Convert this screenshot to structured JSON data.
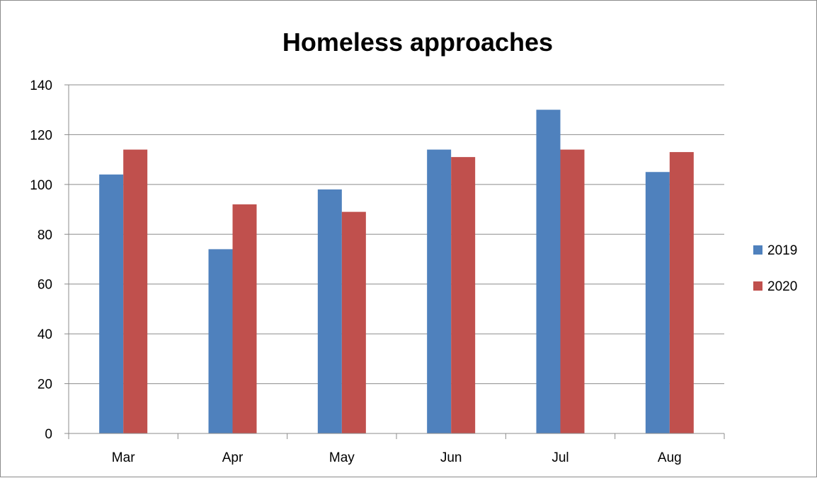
{
  "chart_data": {
    "type": "bar",
    "title": "Homeless approaches",
    "xlabel": "",
    "ylabel": "",
    "categories": [
      "Mar",
      "Apr",
      "May",
      "Jun",
      "Jul",
      "Aug"
    ],
    "series": [
      {
        "name": "2019",
        "color": "#4f81bd",
        "values": [
          104,
          74,
          98,
          114,
          130,
          105
        ]
      },
      {
        "name": "2020",
        "color": "#c0504d",
        "values": [
          114,
          92,
          89,
          111,
          114,
          113
        ]
      }
    ],
    "ylim": [
      0,
      140
    ],
    "yticks": [
      "0",
      "20",
      "40",
      "60",
      "80",
      "100",
      "120",
      "140"
    ],
    "grid": true,
    "legend_position": "right"
  }
}
